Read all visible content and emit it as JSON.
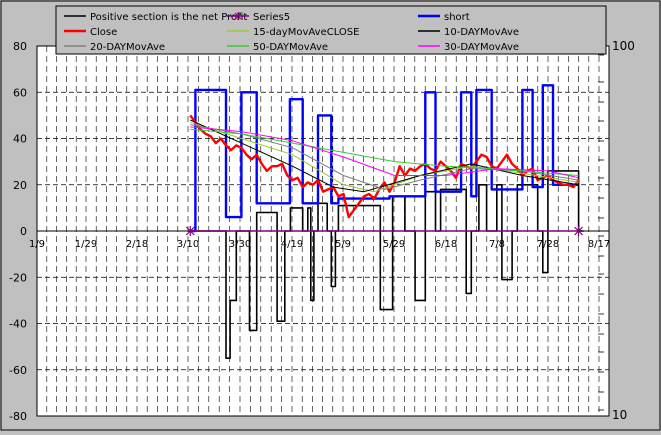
{
  "chart_data": {
    "type": "line",
    "x_ticks": [
      "1/9",
      "1/29",
      "2/18",
      "3/10",
      "3/30",
      "4/19",
      "5/9",
      "5/29",
      "6/18",
      "7/8",
      "7/28",
      "8/17"
    ],
    "ylim": [
      -80,
      80
    ],
    "y_ticks": [
      -80,
      -60,
      -40,
      -20,
      0,
      20,
      40,
      60,
      80
    ],
    "y2_ticks": [
      "100",
      "10"
    ],
    "grid": true,
    "legend_position": "top",
    "legend": [
      {
        "name": "Positive section is the net Profit",
        "color": "#000000"
      },
      {
        "name": "Series5",
        "color": "#800080"
      },
      {
        "name": "short",
        "color": "#0000ff"
      },
      {
        "name": "Close",
        "color": "#ff0000"
      },
      {
        "name": "15-dayMovAveCLOSE",
        "color": "#99cc33"
      },
      {
        "name": "10-DAYMovAve",
        "color": "#000000"
      },
      {
        "name": "20-DAYMovAve",
        "color": "#808080"
      },
      {
        "name": "50-DAYMovAve",
        "color": "#33cc33"
      },
      {
        "name": "30-DAYMovAve",
        "color": "#ff00ff"
      }
    ],
    "series": [
      {
        "key": "profit",
        "name": "Positive section is the net Profit",
        "color": "#000000",
        "width": 1.6,
        "step": true,
        "x": [
          30,
          36,
          37,
          37.8,
          39,
          40,
          40.8,
          41.6,
          43,
          45,
          47,
          47.6,
          48.5,
          49.6,
          51,
          52,
          53,
          53.6,
          54.2,
          55,
          56.2,
          56.8,
          57.6,
          58.4,
          59,
          60,
          64,
          66,
          67.2,
          68.2,
          69.6,
          71,
          72,
          73,
          74,
          75,
          76,
          77,
          78,
          79,
          82,
          84,
          85,
          86.5,
          87.6,
          88,
          90,
          91,
          92,
          93,
          94,
          96,
          98,
          99,
          100,
          103,
          106,
          107
        ],
        "y": [
          0,
          0,
          -55,
          -30,
          0,
          0,
          0,
          -43,
          8,
          8,
          -39,
          -39,
          0,
          10,
          10,
          0,
          10,
          -30,
          0,
          12,
          12,
          0,
          -24,
          0,
          11,
          11,
          11,
          11,
          -34,
          -34,
          15,
          15,
          0,
          0,
          -30,
          -30,
          17,
          17,
          0,
          18,
          18,
          -27,
          0,
          20,
          20,
          0,
          20,
          -21,
          -21,
          0,
          20,
          20,
          0,
          -18,
          26,
          26,
          0,
          0
        ]
      },
      {
        "key": "short",
        "name": "short",
        "color": "#0000ff",
        "width": 2.4,
        "step": true,
        "x": [
          30,
          31,
          35,
          37,
          39,
          40,
          42,
          43,
          47,
          48,
          49.5,
          50.5,
          52,
          54.2,
          55,
          56.4,
          57.6,
          59,
          62,
          67,
          68,
          69,
          70,
          75,
          76,
          77,
          78,
          79,
          80,
          83,
          84,
          85,
          86,
          88,
          89,
          93,
          94,
          95,
          96,
          97,
          98,
          99,
          100,
          101,
          103,
          104,
          106
        ],
        "y": [
          0,
          61,
          61,
          6,
          6,
          60,
          60,
          12,
          12,
          12,
          57,
          57,
          12,
          12,
          50,
          50,
          12,
          14,
          14,
          14,
          14,
          15,
          15,
          15,
          60,
          60,
          17,
          17,
          17,
          60,
          60,
          15,
          61,
          61,
          18,
          18,
          18,
          61,
          61,
          19,
          19,
          63,
          63,
          20,
          20,
          20,
          20
        ]
      },
      {
        "key": "series5",
        "name": "Series5",
        "color": "#800080",
        "width": 1.5,
        "step": false,
        "x": [
          30,
          106
        ],
        "y": [
          0,
          0
        ]
      },
      {
        "key": "close",
        "name": "Close",
        "color": "#ff0000",
        "width": 2.4,
        "step": false,
        "x": [
          30,
          31,
          32,
          33,
          34,
          35,
          36,
          37,
          38,
          39,
          40,
          41,
          42,
          43,
          44,
          45,
          46,
          47,
          48,
          49,
          50,
          51,
          52,
          53,
          54,
          55,
          56,
          57,
          58,
          59,
          60,
          61,
          62,
          63,
          64,
          65,
          66,
          67,
          68,
          69,
          70,
          71,
          72,
          73,
          74,
          75,
          76,
          77,
          78,
          79,
          80,
          81,
          82,
          83,
          84,
          85,
          86,
          87,
          88,
          89,
          90,
          91,
          92,
          93,
          94,
          95,
          96,
          97,
          98,
          99,
          100,
          101,
          102,
          103,
          104,
          105,
          106
        ],
        "y": [
          50,
          47,
          44,
          42,
          41,
          38,
          40,
          37,
          35,
          37,
          36,
          33,
          31,
          33,
          29,
          26,
          28,
          28,
          29,
          24,
          22,
          23,
          19,
          21,
          20,
          22,
          17,
          18,
          19,
          15,
          16,
          6,
          9,
          12,
          15,
          16,
          14,
          18,
          21,
          17,
          21,
          28,
          24,
          27,
          26,
          28,
          29,
          27,
          26,
          30,
          28,
          26,
          23,
          29,
          28,
          27,
          30,
          33,
          32,
          28,
          27,
          30,
          33,
          29,
          27,
          24,
          26,
          27,
          22,
          23,
          24,
          22,
          21,
          20,
          20,
          19,
          22
        ]
      },
      {
        "key": "ma15",
        "name": "15-dayMovAveCLOSE",
        "color": "#99cc33",
        "width": 1.0,
        "step": false,
        "x": [
          30,
          40,
          50,
          60,
          66,
          75,
          85,
          95,
          106
        ],
        "y": [
          47,
          40,
          33,
          20,
          17,
          24,
          28,
          25,
          21
        ]
      },
      {
        "key": "ma10",
        "name": "10-DAYMovAve",
        "color": "#000000",
        "width": 1.0,
        "step": false,
        "x": [
          30,
          40,
          50,
          58,
          64,
          75,
          85,
          95,
          106
        ],
        "y": [
          48,
          38,
          28,
          19,
          17,
          24,
          29,
          24,
          20
        ]
      },
      {
        "key": "ma20",
        "name": "20-DAYMovAve",
        "color": "#808080",
        "width": 1.0,
        "step": false,
        "x": [
          30,
          40,
          50,
          60,
          68,
          75,
          85,
          95,
          106
        ],
        "y": [
          46,
          42,
          36,
          24,
          18,
          22,
          27,
          26,
          22
        ]
      },
      {
        "key": "ma50",
        "name": "50-DAYMovAve",
        "color": "#33cc33",
        "width": 1.0,
        "step": false,
        "x": [
          30,
          40,
          50,
          60,
          70,
          80,
          90,
          100,
          106
        ],
        "y": [
          44,
          42,
          38,
          34,
          30,
          28,
          27,
          25,
          24
        ]
      },
      {
        "key": "ma30",
        "name": "30-DAYMovAve",
        "color": "#ff00ff",
        "width": 1.0,
        "step": false,
        "x": [
          30,
          40,
          50,
          60,
          70,
          80,
          90,
          100,
          106
        ],
        "y": [
          45,
          43,
          39,
          32,
          24,
          24,
          27,
          26,
          23
        ]
      }
    ]
  }
}
